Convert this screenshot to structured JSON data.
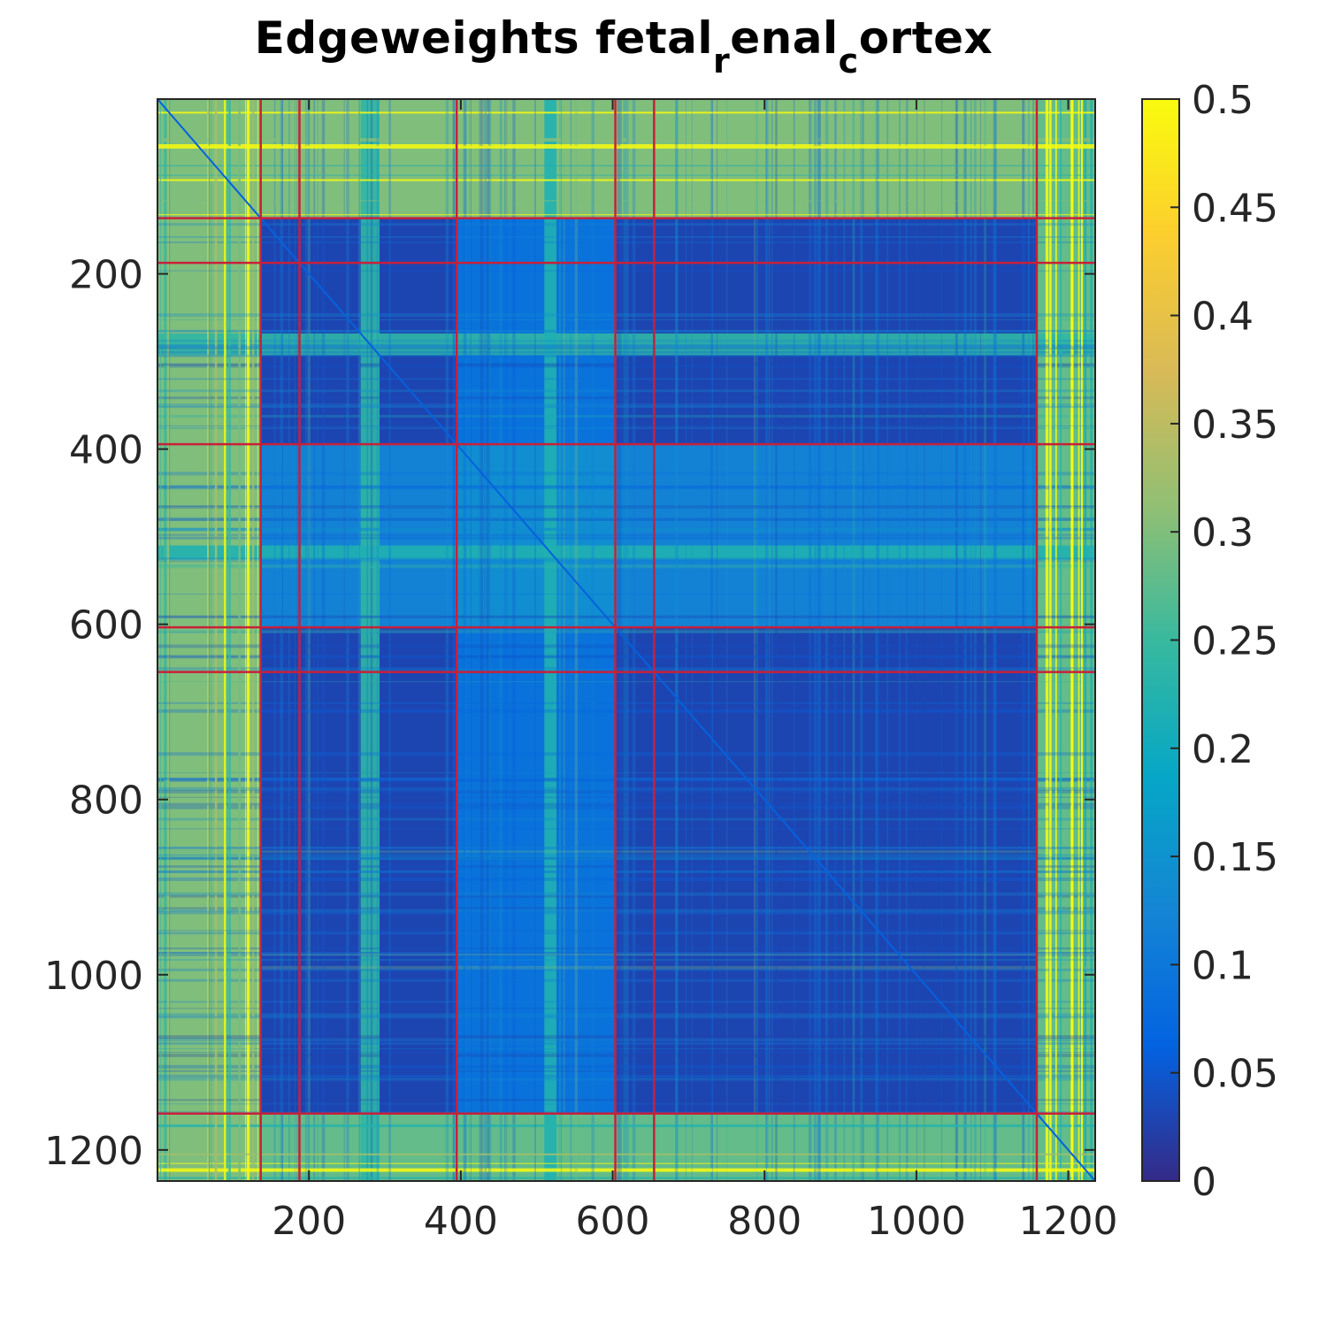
{
  "chart_data": {
    "type": "heatmap",
    "title": {
      "parts": [
        "Edgeweights fetal",
        "r",
        "enal",
        "c",
        "ortex"
      ]
    },
    "xlabel": "",
    "ylabel": "",
    "matrix_size": 1235,
    "xlim": [
      1,
      1235
    ],
    "ylim": [
      1,
      1235
    ],
    "y_reversed": true,
    "x_ticks": [
      200,
      400,
      600,
      800,
      1000,
      1200
    ],
    "y_ticks": [
      200,
      400,
      600,
      800,
      1000,
      1200
    ],
    "x_tick_labels": [
      "200",
      "400",
      "600",
      "800",
      "1000",
      "1200"
    ],
    "y_tick_labels": [
      "200",
      "400",
      "600",
      "800",
      "1000",
      "1200"
    ],
    "colorbar": {
      "range": [
        0,
        0.5
      ],
      "ticks": [
        0,
        0.05,
        0.1,
        0.15,
        0.2,
        0.25,
        0.3,
        0.35,
        0.4,
        0.45,
        0.5
      ],
      "tick_labels": [
        "0",
        "0.05",
        "0.1",
        "0.15",
        "0.2",
        "0.25",
        "0.3",
        "0.35",
        "0.4",
        "0.45",
        "0.5"
      ],
      "colormap": "parula",
      "colormap_stops": [
        "#352a87",
        "#0363e1",
        "#1485d4",
        "#06a7c6",
        "#38b99e",
        "#92bf73",
        "#d9ba56",
        "#fcce2e",
        "#f9fb0e"
      ]
    },
    "cluster_boundaries": [
      136,
      187,
      394,
      603,
      654,
      1158
    ],
    "boundary_color": "#c8203a",
    "blocks": [
      {
        "rows": [
          1,
          136
        ],
        "cols": [
          1,
          1235
        ],
        "value": 0.3
      },
      {
        "rows": [
          1159,
          1235
        ],
        "cols": [
          1,
          1235
        ],
        "value": 0.28
      },
      {
        "rows": [
          1,
          1235
        ],
        "cols": [
          1,
          136
        ],
        "value": 0.3
      },
      {
        "rows": [
          1,
          1235
        ],
        "cols": [
          1159,
          1235
        ],
        "value": 0.28
      },
      {
        "rows": [
          137,
          394
        ],
        "cols": [
          137,
          1158
        ],
        "value": 0.03
      },
      {
        "rows": [
          395,
          603
        ],
        "cols": [
          137,
          1158
        ],
        "value": 0.12
      },
      {
        "rows": [
          604,
          1158
        ],
        "cols": [
          137,
          1158
        ],
        "value": 0.03
      },
      {
        "rows": [
          137,
          1158
        ],
        "cols": [
          395,
          603
        ],
        "value": 0.09
      },
      {
        "rows": [
          395,
          603
        ],
        "cols": [
          395,
          603
        ],
        "value": 0.14
      }
    ],
    "bright_bands": [
      {
        "range": [
          268,
          292
        ],
        "value": 0.24
      },
      {
        "range": [
          510,
          525
        ],
        "value": 0.22
      }
    ]
  }
}
